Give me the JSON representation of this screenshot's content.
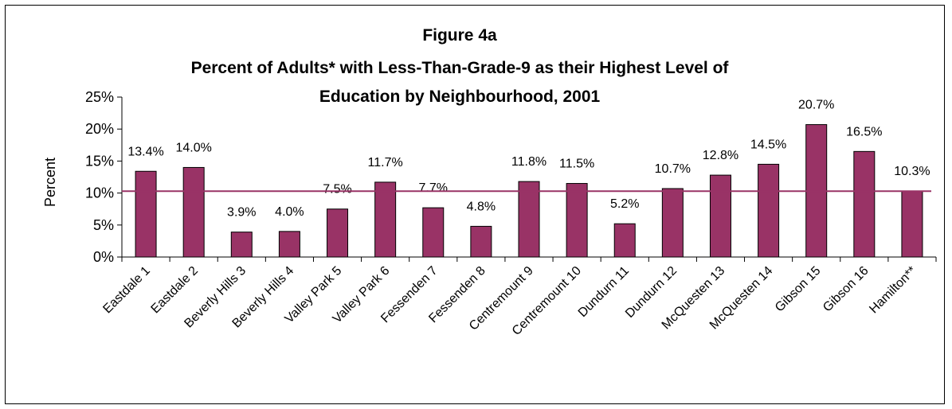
{
  "chart_data": {
    "type": "bar",
    "title": "Figure 4a",
    "subtitle": "Percent of Adults* with Less-Than-Grade-9 as their Highest Level of Education by Neighbourhood, 2001",
    "subtitle_lines": [
      "Percent of Adults* with Less-Than-Grade-9 as their Highest Level of",
      "Education by Neighbourhood, 2001"
    ],
    "ylabel": "Percent",
    "xlabel": "",
    "ylim": [
      0,
      25
    ],
    "y_ticks": [
      "0%",
      "5%",
      "10%",
      "15%",
      "20%",
      "25%"
    ],
    "categories": [
      "Eastdale 1",
      "Eastdale 2",
      "Beverly Hills 3",
      "Beverly Hills 4",
      "Valley Park 5",
      "Valley Park 6",
      "Fessenden 7",
      "Fessenden 8",
      "Centremount 9",
      "Centremount 10",
      "Dundurn 11",
      "Dundurn 12",
      "McQuesten 13",
      "McQuesten 14",
      "Gibson 15",
      "Gibson 16",
      "Hamilton**"
    ],
    "values": [
      13.4,
      14.0,
      3.9,
      4.0,
      7.5,
      11.7,
      7.7,
      4.8,
      11.8,
      11.5,
      5.2,
      10.7,
      12.8,
      14.5,
      20.7,
      16.5,
      10.3
    ],
    "data_labels": [
      "13.4%",
      "14.0%",
      "3.9%",
      "4.0%",
      "7.5%",
      "11.7%",
      "7.7%",
      "4.8%",
      "11.8%",
      "11.5%",
      "5.2%",
      "10.7%",
      "12.8%",
      "14.5%",
      "20.7%",
      "16.5%",
      "10.3%"
    ],
    "reference_line": 10.3,
    "grid": false,
    "legend": "none",
    "colors": {
      "bar": "#993366",
      "reference_line": "#993366"
    }
  }
}
